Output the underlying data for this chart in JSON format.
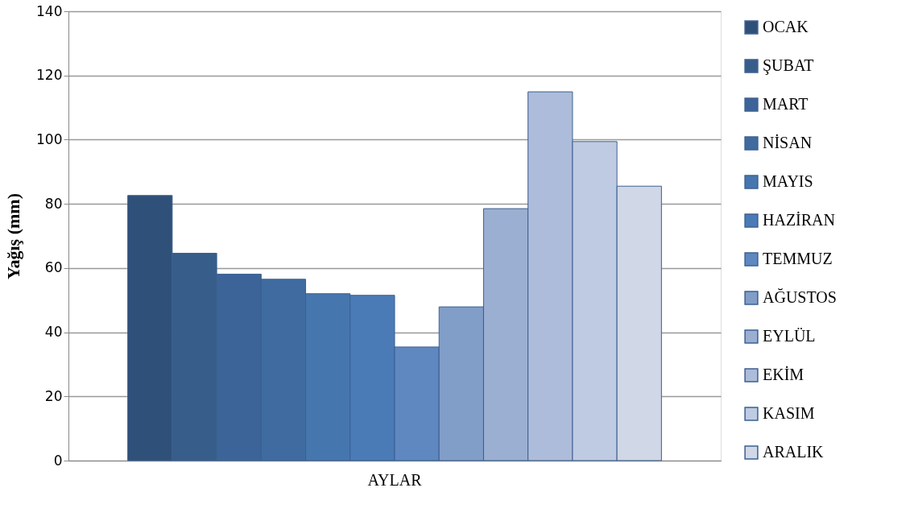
{
  "chart_data": {
    "type": "bar",
    "ylabel": "Yağış (mm)",
    "categories": [
      "AYLAR"
    ],
    "series": [
      {
        "name": "OCAK",
        "color": "#2f5078",
        "values": [
          82.6
        ]
      },
      {
        "name": "ŞUBAT",
        "color": "#375d8a",
        "values": [
          64.6
        ]
      },
      {
        "name": "MART",
        "color": "#3c6498",
        "values": [
          58.1
        ]
      },
      {
        "name": "NİSAN",
        "color": "#3f6ba0",
        "values": [
          56.5
        ]
      },
      {
        "name": "MAYIS",
        "color": "#4676ae",
        "values": [
          52
        ]
      },
      {
        "name": "HAZİRAN",
        "color": "#4a7bb7",
        "values": [
          51.5
        ]
      },
      {
        "name": "TEMMUZ",
        "color": "#5f87c0",
        "values": [
          35.4
        ]
      },
      {
        "name": "AĞUSTOS",
        "color": "#819ec9",
        "values": [
          47.9
        ]
      },
      {
        "name": "EYLÜL",
        "color": "#9aafd2",
        "values": [
          78.5
        ]
      },
      {
        "name": "EKİM",
        "color": "#adbcda",
        "values": [
          114.9
        ]
      },
      {
        "name": "KASIM",
        "color": "#bfcbe3",
        "values": [
          99.4
        ]
      },
      {
        "name": "ARALIK",
        "color": "#d0d7e6",
        "values": [
          85.5
        ]
      }
    ],
    "ylim": [
      0,
      140
    ],
    "yticks": [
      0,
      20,
      40,
      60,
      80,
      100,
      120,
      140
    ],
    "grid": "y",
    "legend": "right"
  }
}
